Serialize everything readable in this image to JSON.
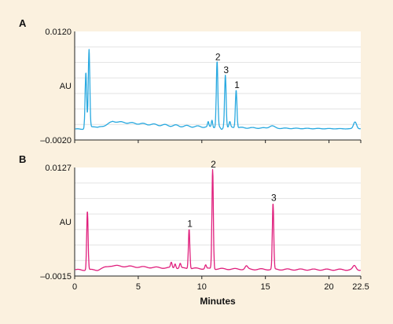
{
  "chart_data": [
    {
      "type": "line",
      "panel_label": "A",
      "ylabel": "AU",
      "yticks": [
        "0.0120",
        "–0.0020"
      ],
      "ylim": [
        -0.002,
        0.012
      ],
      "xlim": [
        0,
        22.5
      ],
      "grid": "horizontal",
      "color": "#29a9e0",
      "baseline": -0.0006,
      "peaks": [
        {
          "x": 0.88,
          "y": 0.0066,
          "label": ""
        },
        {
          "x": 1.13,
          "y": 0.0094,
          "label": ""
        },
        {
          "x": 11.2,
          "y": 0.0079,
          "label": "2"
        },
        {
          "x": 11.85,
          "y": 0.0062,
          "label": "3"
        },
        {
          "x": 12.7,
          "y": 0.0043,
          "label": "1"
        },
        {
          "x": 22.05,
          "y": 0.0003,
          "label": ""
        }
      ]
    },
    {
      "type": "line",
      "panel_label": "B",
      "ylabel": "AU",
      "yticks": [
        "0.0127",
        "–0.0015"
      ],
      "ylim": [
        -0.0015,
        0.0127
      ],
      "xlim": [
        0,
        22.5
      ],
      "grid": "horizontal",
      "color": "#e0207d",
      "baseline": -0.0007,
      "peaks": [
        {
          "x": 1.0,
          "y": 0.007,
          "label": ""
        },
        {
          "x": 9.0,
          "y": 0.0045,
          "label": "1"
        },
        {
          "x": 10.85,
          "y": 0.0123,
          "label": "2"
        },
        {
          "x": 15.6,
          "y": 0.0079,
          "label": "3"
        },
        {
          "x": 22.0,
          "y": -0.0002,
          "label": ""
        }
      ]
    }
  ],
  "x_axis": {
    "ticks": [
      "0",
      "5",
      "10",
      "15",
      "20",
      "22.5"
    ],
    "tick_values": [
      0,
      5,
      10,
      15,
      20,
      22.5
    ],
    "label": "Minutes"
  }
}
